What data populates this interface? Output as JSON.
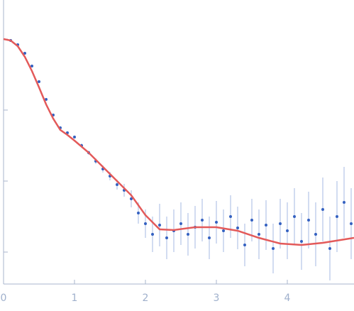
{
  "chart_data": {
    "type": "scatter",
    "x": [
      0.1,
      0.2,
      0.3,
      0.4,
      0.5,
      0.6,
      0.7,
      0.8,
      0.9,
      1.0,
      1.1,
      1.2,
      1.3,
      1.4,
      1.5,
      1.6,
      1.7,
      1.8,
      1.9,
      2.0,
      2.1,
      2.2,
      2.3,
      2.4,
      2.5,
      2.6,
      2.7,
      2.8,
      2.9,
      3.0,
      3.1,
      3.2,
      3.3,
      3.4,
      3.5,
      3.6,
      3.7,
      3.8,
      3.9,
      4.0,
      4.1,
      4.2,
      4.3,
      4.4,
      4.5,
      4.6,
      4.7,
      4.8,
      4.9
    ],
    "values": [
      -0.02,
      -0.08,
      -0.2,
      -0.38,
      -0.6,
      -0.85,
      -1.07,
      -1.25,
      -1.32,
      -1.38,
      -1.5,
      -1.6,
      -1.72,
      -1.83,
      -1.93,
      -2.05,
      -2.13,
      -2.25,
      -2.45,
      -2.6,
      -2.75,
      -2.62,
      -2.8,
      -2.7,
      -2.6,
      -2.75,
      -2.65,
      -2.55,
      -2.8,
      -2.58,
      -2.7,
      -2.5,
      -2.66,
      -2.9,
      -2.55,
      -2.75,
      -2.62,
      -2.95,
      -2.6,
      -2.7,
      -2.5,
      -2.85,
      -2.55,
      -2.75,
      -2.4,
      -2.95,
      -2.5,
      -2.3,
      -2.6
    ],
    "errors": [
      0.01,
      0.01,
      0.01,
      0.01,
      0.01,
      0.01,
      0.01,
      0.02,
      0.02,
      0.02,
      0.03,
      0.03,
      0.04,
      0.05,
      0.06,
      0.07,
      0.09,
      0.12,
      0.15,
      0.2,
      0.25,
      0.3,
      0.3,
      0.3,
      0.3,
      0.3,
      0.3,
      0.3,
      0.3,
      0.3,
      0.3,
      0.3,
      0.3,
      0.3,
      0.3,
      0.35,
      0.35,
      0.35,
      0.35,
      0.4,
      0.4,
      0.4,
      0.4,
      0.45,
      0.45,
      0.45,
      0.5,
      0.5,
      0.5
    ],
    "color": "#3461c1",
    "error_color": "#c2d0ec",
    "fit": {
      "x": [
        0,
        0.1,
        0.2,
        0.3,
        0.4,
        0.5,
        0.6,
        0.7,
        0.8,
        0.9,
        1.0,
        1.2,
        1.4,
        1.6,
        1.8,
        2.0,
        2.2,
        2.4,
        2.7,
        3.0,
        3.3,
        3.6,
        3.9,
        4.2,
        4.5,
        4.94
      ],
      "values": [
        0,
        -0.02,
        -0.1,
        -0.25,
        -0.45,
        -0.68,
        -0.92,
        -1.12,
        -1.28,
        -1.35,
        -1.43,
        -1.6,
        -1.8,
        -2.0,
        -2.2,
        -2.48,
        -2.68,
        -2.69,
        -2.65,
        -2.65,
        -2.7,
        -2.8,
        -2.88,
        -2.9,
        -2.87,
        -2.8
      ],
      "color": "#e35a5a"
    },
    "xlim": [
      0,
      4.94
    ],
    "xticks": [
      0,
      1,
      2,
      3,
      4
    ],
    "ylim": [
      -3.45,
      0.55
    ],
    "yticks": [
      -3,
      -2,
      -1,
      0
    ]
  }
}
